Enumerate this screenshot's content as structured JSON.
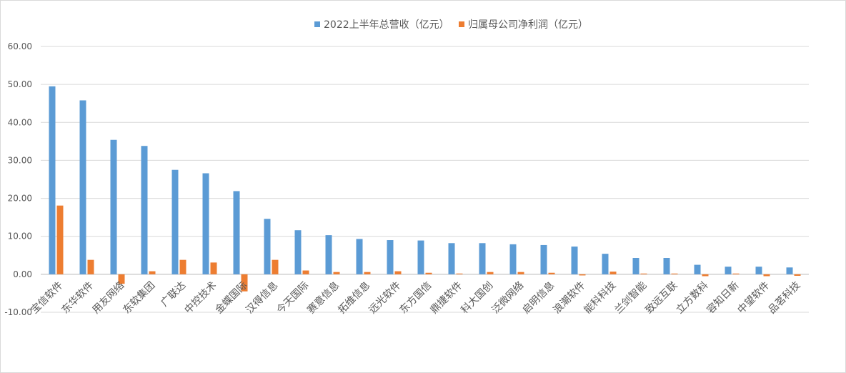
{
  "chart_data": {
    "type": "bar",
    "title": "",
    "xlabel": "",
    "ylabel": "",
    "ylim": [
      -10,
      60
    ],
    "y_ticks": [
      "-10.00",
      "0.00",
      "10.00",
      "20.00",
      "30.00",
      "40.00",
      "50.00",
      "60.00"
    ],
    "grid": true,
    "legend_position": "top-center",
    "categories": [
      "宝信软件",
      "东华软件",
      "用友网络",
      "东软集团",
      "广联达",
      "中控技术",
      "金蝶国际",
      "汉得信息",
      "今天国际",
      "赛意信息",
      "拓维信息",
      "远光软件",
      "东方国信",
      "鼎捷软件",
      "科大国创",
      "泛微网络",
      "启明信息",
      "浪潮软件",
      "能科科技",
      "兰剑智能",
      "致远互联",
      "立方数科",
      "容知日新",
      "中望软件",
      "品茗科技"
    ],
    "series": [
      {
        "name": "2022上半年总营收（亿元）",
        "color": "#5b9bd5",
        "values": [
          49.5,
          45.8,
          35.4,
          33.8,
          27.5,
          26.6,
          21.9,
          14.6,
          11.6,
          10.3,
          9.3,
          9.0,
          8.9,
          8.2,
          8.2,
          7.9,
          7.7,
          7.3,
          5.4,
          4.3,
          4.3,
          2.5,
          2.0,
          2.0,
          1.8
        ]
      },
      {
        "name": "归属母公司净利润（亿元）",
        "color": "#ed7d31",
        "values": [
          18.1,
          3.8,
          -2.5,
          0.8,
          3.8,
          3.1,
          -4.5,
          3.8,
          1.0,
          0.6,
          0.6,
          0.8,
          0.4,
          0.2,
          0.6,
          0.6,
          0.4,
          -0.3,
          0.7,
          0.2,
          0.2,
          -0.5,
          0.2,
          -0.5,
          -0.4
        ]
      }
    ]
  }
}
